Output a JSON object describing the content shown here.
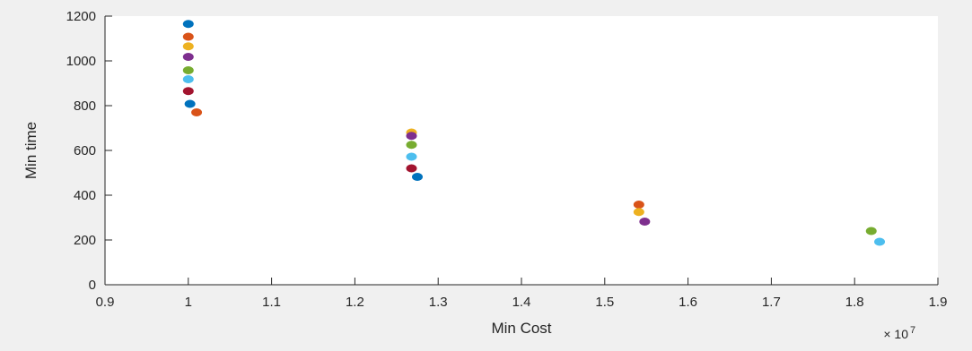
{
  "chart_data": {
    "type": "scatter",
    "title": "",
    "xlabel": "Min Cost",
    "ylabel": "Min time",
    "x_multiplier_label": "× 10",
    "x_multiplier_exponent": "7",
    "xlim": [
      0.9,
      1.9
    ],
    "ylim": [
      0,
      1200
    ],
    "xticks": [
      "0.9",
      "1",
      "1.1",
      "1.2",
      "1.3",
      "1.4",
      "1.5",
      "1.6",
      "1.7",
      "1.8",
      "1.9"
    ],
    "yticks": [
      "0",
      "200",
      "400",
      "600",
      "800",
      "1000",
      "1200"
    ],
    "grid": false,
    "legend": "none",
    "points": [
      {
        "x": 1.0,
        "y": 1165,
        "color": "#0072BD"
      },
      {
        "x": 1.0,
        "y": 1108,
        "color": "#D95319"
      },
      {
        "x": 1.0,
        "y": 1065,
        "color": "#EDB120"
      },
      {
        "x": 1.0,
        "y": 1018,
        "color": "#7E2F8E"
      },
      {
        "x": 1.0,
        "y": 958,
        "color": "#77AC30"
      },
      {
        "x": 1.0,
        "y": 918,
        "color": "#4DBEEE"
      },
      {
        "x": 1.0,
        "y": 865,
        "color": "#A2142F"
      },
      {
        "x": 1.002,
        "y": 808,
        "color": "#0072BD"
      },
      {
        "x": 1.01,
        "y": 770,
        "color": "#D95319"
      },
      {
        "x": 1.268,
        "y": 680,
        "color": "#EDB120"
      },
      {
        "x": 1.268,
        "y": 665,
        "color": "#7E2F8E"
      },
      {
        "x": 1.268,
        "y": 625,
        "color": "#77AC30"
      },
      {
        "x": 1.268,
        "y": 572,
        "color": "#4DBEEE"
      },
      {
        "x": 1.268,
        "y": 520,
        "color": "#A2142F"
      },
      {
        "x": 1.275,
        "y": 482,
        "color": "#0072BD"
      },
      {
        "x": 1.541,
        "y": 358,
        "color": "#D95319"
      },
      {
        "x": 1.541,
        "y": 325,
        "color": "#EDB120"
      },
      {
        "x": 1.548,
        "y": 282,
        "color": "#7E2F8E"
      },
      {
        "x": 1.82,
        "y": 240,
        "color": "#77AC30"
      },
      {
        "x": 1.83,
        "y": 192,
        "color": "#4DBEEE"
      }
    ]
  }
}
